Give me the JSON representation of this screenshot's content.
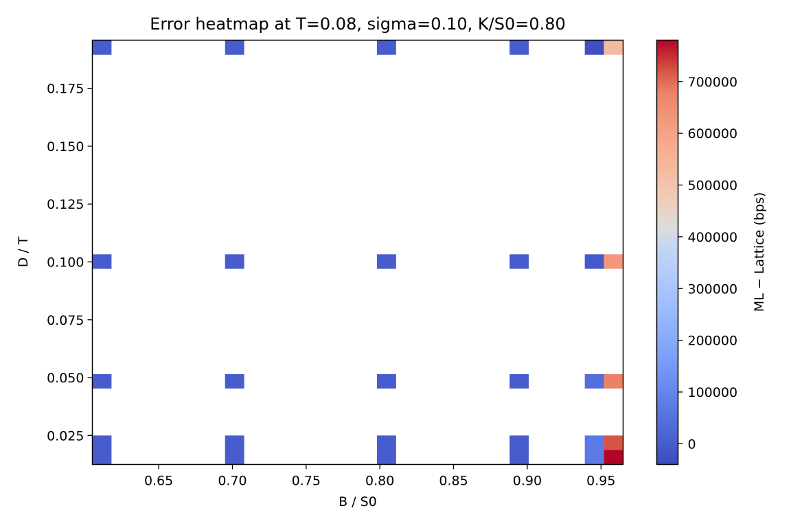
{
  "chart_data": {
    "type": "heatmap",
    "title": "Error heatmap at T=0.08, sigma=0.10, K/S0=0.80",
    "xlabel": "B / S0",
    "ylabel": "D / T",
    "colorbar_label": "ML − Lattice (bps)",
    "colormap": "coolwarm",
    "xlim": [
      0.605,
      0.965
    ],
    "ylim": [
      0.0125,
      0.1958
    ],
    "clim": [
      -40000,
      780000
    ],
    "xticks": [
      0.65,
      0.7,
      0.75,
      0.8,
      0.85,
      0.9,
      0.95
    ],
    "xtick_labels": [
      "0.65",
      "0.70",
      "0.75",
      "0.80",
      "0.85",
      "0.90",
      "0.95"
    ],
    "yticks": [
      0.025,
      0.05,
      0.075,
      0.1,
      0.125,
      0.15,
      0.175
    ],
    "ytick_labels": [
      "0.025",
      "0.050",
      "0.075",
      "0.100",
      "0.125",
      "0.150",
      "0.175"
    ],
    "cticks": [
      0,
      100000,
      200000,
      300000,
      400000,
      500000,
      600000,
      700000
    ],
    "ctick_labels": [
      "0",
      "100000",
      "200000",
      "300000",
      "400000",
      "500000",
      "600000",
      "700000"
    ],
    "grid": false,
    "cells": [
      {
        "x": [
          0.605,
          0.618
        ],
        "y": [
          0.1895,
          0.1958
        ],
        "value": 0
      },
      {
        "x": [
          0.695,
          0.708
        ],
        "y": [
          0.1895,
          0.1958
        ],
        "value": 0
      },
      {
        "x": [
          0.798,
          0.811
        ],
        "y": [
          0.1895,
          0.1958
        ],
        "value": 0
      },
      {
        "x": [
          0.888,
          0.901
        ],
        "y": [
          0.1895,
          0.1958
        ],
        "value": 0
      },
      {
        "x": [
          0.939,
          0.952
        ],
        "y": [
          0.1895,
          0.1958
        ],
        "value": -30000
      },
      {
        "x": [
          0.952,
          0.965
        ],
        "y": [
          0.1895,
          0.1958
        ],
        "value": 530000
      },
      {
        "x": [
          0.605,
          0.618
        ],
        "y": [
          0.097,
          0.1033
        ],
        "value": 0
      },
      {
        "x": [
          0.695,
          0.708
        ],
        "y": [
          0.097,
          0.1033
        ],
        "value": 0
      },
      {
        "x": [
          0.798,
          0.811
        ],
        "y": [
          0.097,
          0.1033
        ],
        "value": 0
      },
      {
        "x": [
          0.888,
          0.901
        ],
        "y": [
          0.097,
          0.1033
        ],
        "value": 0
      },
      {
        "x": [
          0.939,
          0.952
        ],
        "y": [
          0.097,
          0.1033
        ],
        "value": -10000
      },
      {
        "x": [
          0.952,
          0.965
        ],
        "y": [
          0.097,
          0.1033
        ],
        "value": 630000
      },
      {
        "x": [
          0.605,
          0.618
        ],
        "y": [
          0.0453,
          0.0515
        ],
        "value": 0
      },
      {
        "x": [
          0.695,
          0.708
        ],
        "y": [
          0.0453,
          0.0515
        ],
        "value": 0
      },
      {
        "x": [
          0.798,
          0.811
        ],
        "y": [
          0.0453,
          0.0515
        ],
        "value": 0
      },
      {
        "x": [
          0.888,
          0.901
        ],
        "y": [
          0.0453,
          0.0515
        ],
        "value": 0
      },
      {
        "x": [
          0.939,
          0.952
        ],
        "y": [
          0.0453,
          0.0515
        ],
        "value": 40000
      },
      {
        "x": [
          0.952,
          0.965
        ],
        "y": [
          0.0453,
          0.0515
        ],
        "value": 680000
      },
      {
        "x": [
          0.605,
          0.618
        ],
        "y": [
          0.0125,
          0.025
        ],
        "value": 0
      },
      {
        "x": [
          0.695,
          0.708
        ],
        "y": [
          0.0125,
          0.025
        ],
        "value": 0
      },
      {
        "x": [
          0.798,
          0.811
        ],
        "y": [
          0.0125,
          0.025
        ],
        "value": 0
      },
      {
        "x": [
          0.888,
          0.901
        ],
        "y": [
          0.0125,
          0.025
        ],
        "value": 0
      },
      {
        "x": [
          0.939,
          0.952
        ],
        "y": [
          0.0125,
          0.025
        ],
        "value": 70000
      },
      {
        "x": [
          0.952,
          0.965
        ],
        "y": [
          0.0188,
          0.025
        ],
        "value": 720000
      },
      {
        "x": [
          0.952,
          0.965
        ],
        "y": [
          0.0125,
          0.0188
        ],
        "value": 780000
      }
    ]
  }
}
